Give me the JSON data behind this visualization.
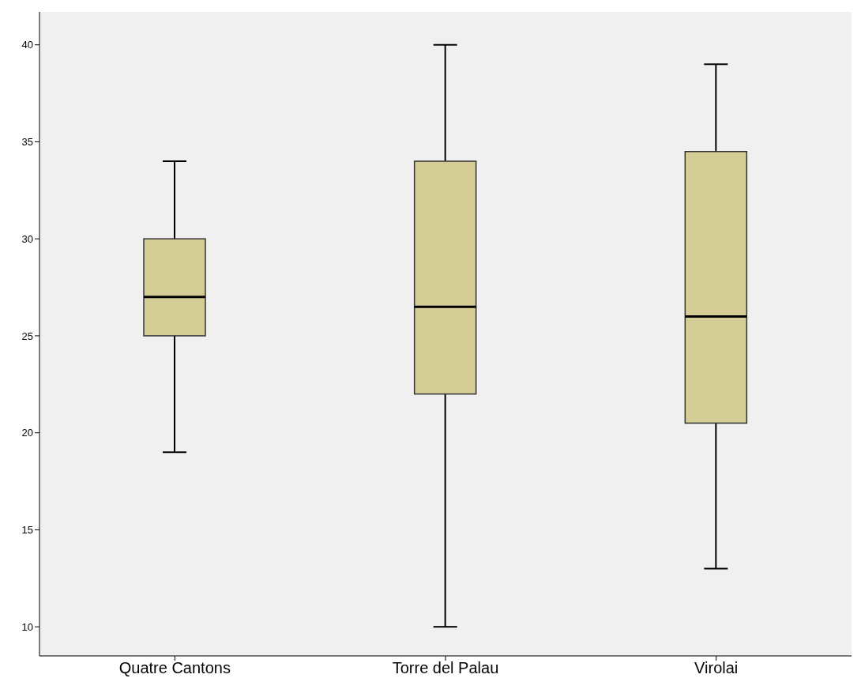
{
  "chart_data": {
    "type": "box",
    "categories": [
      "Quatre Cantons",
      "Torre del Palau",
      "Virolai"
    ],
    "color": "#d4cd96",
    "boxes": [
      {
        "low": 19,
        "q1": 25,
        "median": 27,
        "q3": 30,
        "high": 34
      },
      {
        "low": 10,
        "q1": 22,
        "median": 26.5,
        "q3": 34,
        "high": 40
      },
      {
        "low": 13,
        "q1": 20.5,
        "median": 26,
        "q3": 34.5,
        "high": 39
      }
    ],
    "ylim": [
      8.5,
      41.7
    ],
    "yticks": [
      10,
      15,
      20,
      25,
      30,
      35,
      40
    ],
    "grid": false
  }
}
